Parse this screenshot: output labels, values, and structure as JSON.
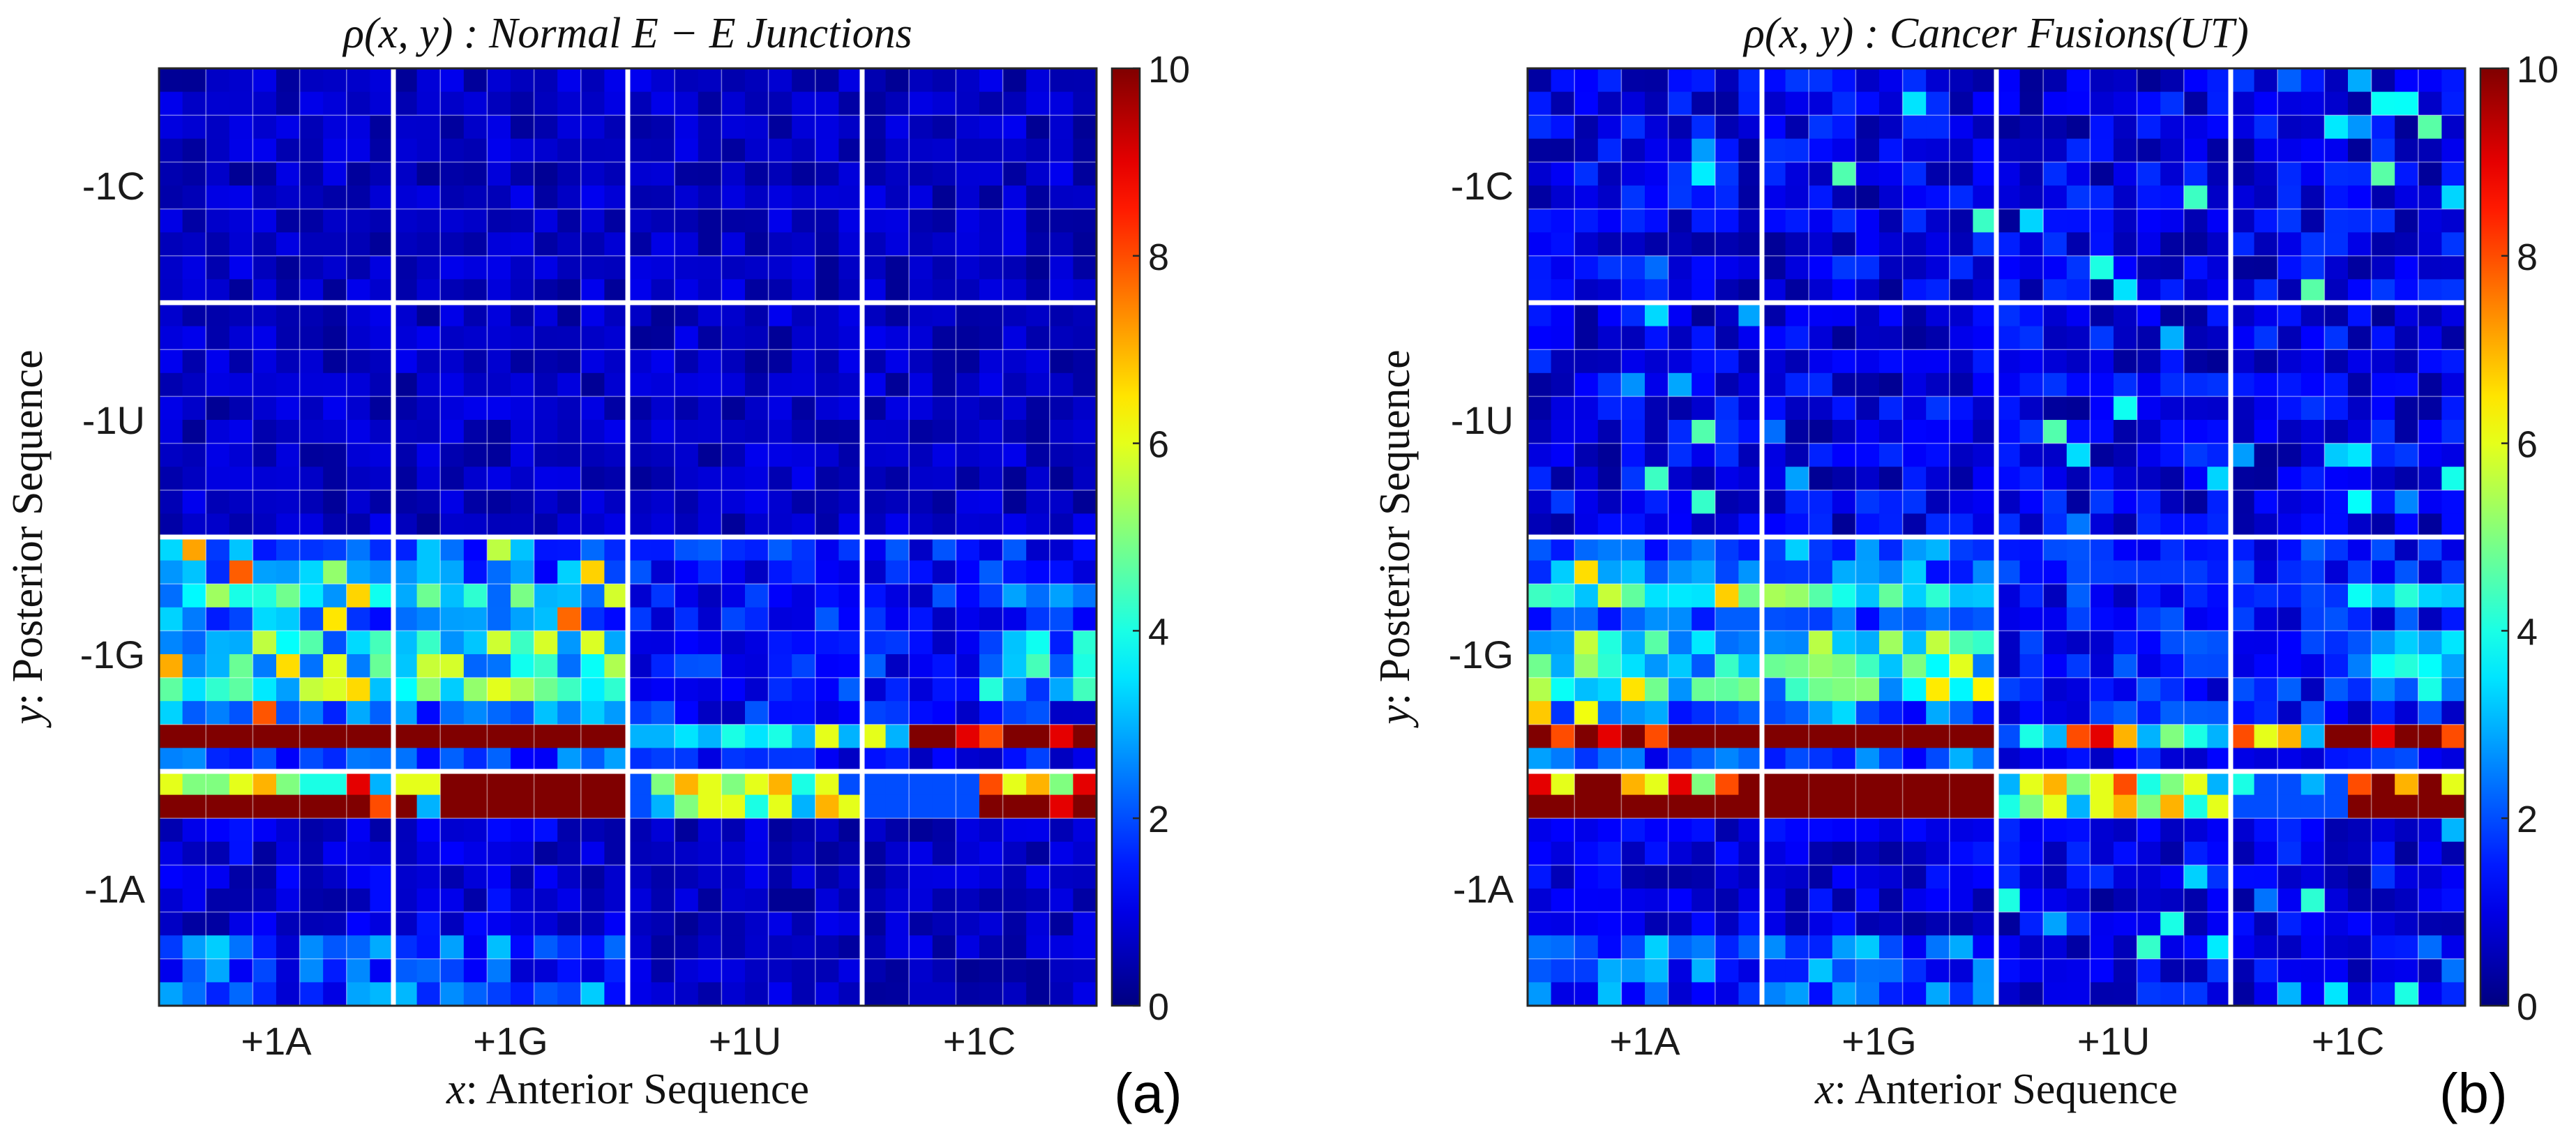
{
  "chart_data": [
    {
      "type": "heatmap",
      "panel_label": "(a)",
      "title": "ρ(x, y) :  Normal E − E Junctions",
      "xlabel_var": "x",
      "xlabel_text": ": Anterior Sequence",
      "ylabel_var": "y",
      "ylabel_text": ": Posterior Sequence",
      "x_tick_labels": [
        "+1A",
        "+1G",
        "+1U",
        "+1C"
      ],
      "y_tick_labels": [
        "-1C",
        "-1U",
        "-1G",
        "-1A"
      ],
      "grid_size": 40,
      "block_size": 10,
      "colorbar": {
        "min": 0,
        "max": 10,
        "ticks": [
          0,
          2,
          4,
          6,
          8,
          10
        ],
        "colormap": "jet"
      },
      "band_rows": {
        "row_28": [
          10,
          10,
          10,
          10,
          10,
          10,
          10,
          10,
          10,
          10,
          10,
          10,
          10,
          10,
          10,
          10,
          10,
          10,
          10,
          10,
          3,
          3,
          3.5,
          3,
          4,
          3.5,
          4,
          3,
          6,
          3,
          6,
          3,
          10,
          10,
          9,
          8,
          10,
          10,
          9,
          10
        ],
        "row_30": [
          6,
          5,
          5,
          6,
          7,
          5,
          4,
          4,
          9,
          3,
          6,
          6,
          10,
          10,
          10,
          10,
          10,
          10,
          10,
          10,
          2,
          5,
          7,
          6,
          5,
          6,
          7,
          4,
          6,
          2,
          2,
          2,
          2,
          2,
          2,
          8,
          6,
          7,
          5,
          9
        ],
        "row_31": [
          10,
          10,
          10,
          10,
          10,
          10,
          10,
          10,
          10,
          8,
          10,
          3,
          10,
          10,
          10,
          10,
          10,
          10,
          10,
          10,
          2,
          3,
          5,
          6,
          6,
          4,
          6,
          3,
          7,
          6,
          2,
          2,
          2,
          2,
          2,
          10,
          10,
          10,
          9,
          10
        ]
      },
      "notes": "Other cells mostly 0–3; -1G rows hot under +1A/+1G columns"
    },
    {
      "type": "heatmap",
      "panel_label": "(b)",
      "title": "ρ(x, y) :  Cancer Fusions(UT)",
      "xlabel_var": "x",
      "xlabel_text": ": Anterior Sequence",
      "ylabel_var": "y",
      "ylabel_text": ": Posterior Sequence",
      "x_tick_labels": [
        "+1A",
        "+1G",
        "+1U",
        "+1C"
      ],
      "y_tick_labels": [
        "-1C",
        "-1U",
        "-1G",
        "-1A"
      ],
      "grid_size": 40,
      "block_size": 10,
      "colorbar": {
        "min": 0,
        "max": 10,
        "ticks": [
          0,
          2,
          4,
          6,
          8,
          10
        ],
        "colormap": "jet"
      },
      "band_rows": {
        "row_28": [
          10,
          8,
          10,
          9,
          10,
          8,
          10,
          10,
          10,
          10,
          10,
          10,
          10,
          10,
          10,
          10,
          10,
          10,
          10,
          10,
          2,
          4,
          3,
          8,
          9,
          7,
          3,
          5,
          4,
          3,
          8,
          6,
          7,
          3,
          10,
          10,
          9,
          10,
          10,
          8
        ],
        "row_30": [
          9,
          6,
          10,
          10,
          7,
          6,
          9,
          5,
          8,
          10,
          10,
          10,
          10,
          10,
          10,
          10,
          10,
          10,
          10,
          10,
          3,
          6,
          7,
          5,
          6,
          8,
          4,
          5,
          6,
          3,
          4,
          2,
          2,
          3,
          2,
          8,
          10,
          7,
          10,
          6
        ],
        "row_31": [
          10,
          10,
          10,
          10,
          10,
          10,
          10,
          10,
          10,
          10,
          10,
          10,
          10,
          10,
          10,
          10,
          10,
          10,
          10,
          10,
          4,
          5,
          6,
          3,
          6,
          7,
          5,
          7,
          4,
          6,
          2,
          2,
          2,
          2,
          2,
          10,
          10,
          10,
          10,
          10
        ]
      },
      "notes": "Noisier background than panel (a); -1G rows hot under +1A/+1G columns"
    }
  ]
}
